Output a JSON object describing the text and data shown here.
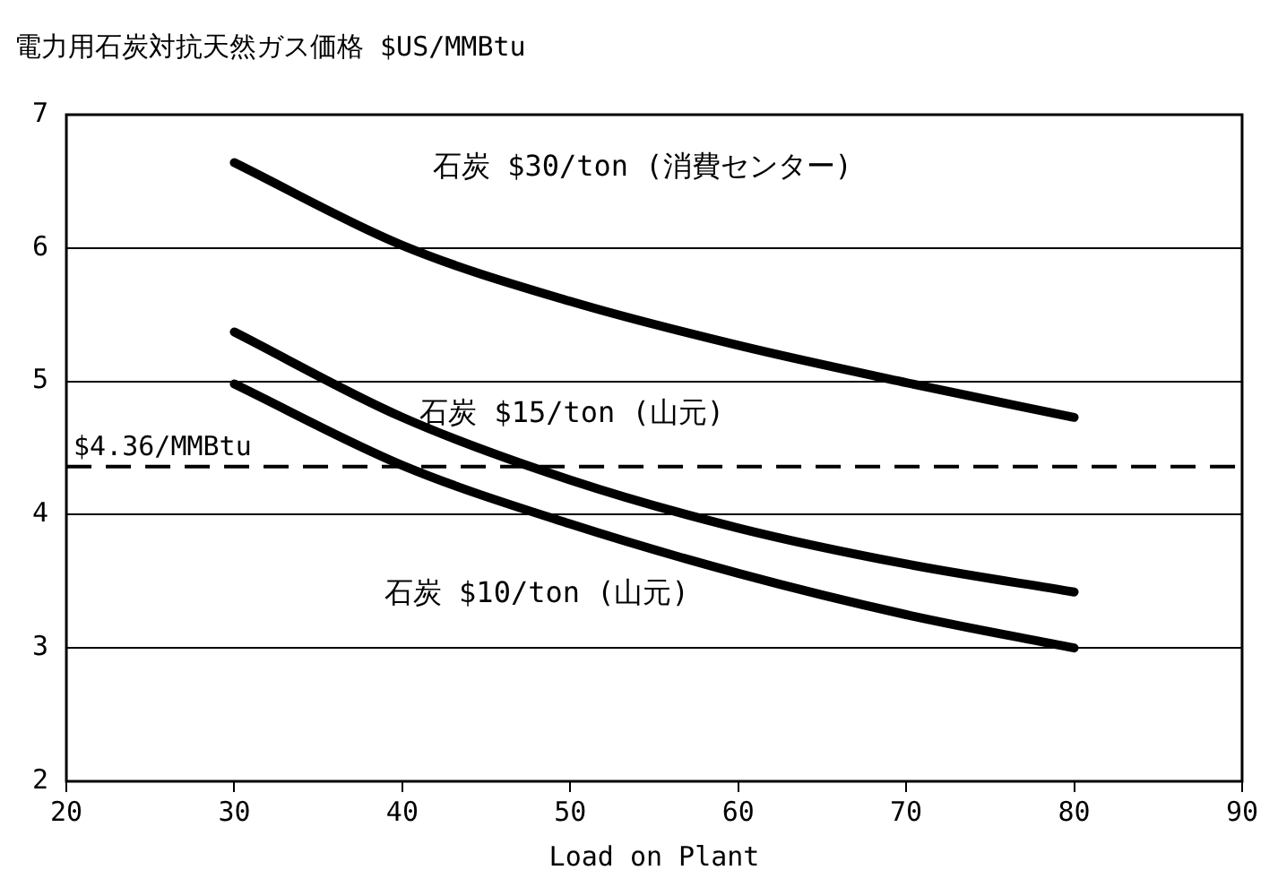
{
  "chart_data": {
    "type": "line",
    "title": "電力用石炭対抗天然ガス価格 $US/MMBtu",
    "xlabel": "Load on Plant",
    "x": [
      30,
      40,
      50,
      60,
      70,
      80
    ],
    "series": [
      {
        "name": "石炭 $30/ton (消費センター)",
        "color": "#000000",
        "values": [
          6.64,
          6.02,
          5.6,
          5.27,
          4.99,
          4.73
        ]
      },
      {
        "name": "石炭 $15/ton (山元)",
        "color": "#000000",
        "values": [
          5.37,
          4.73,
          4.26,
          3.9,
          3.63,
          3.42
        ]
      },
      {
        "name": "石炭 $10/ton (山元)",
        "color": "#000000",
        "values": [
          4.98,
          4.37,
          3.93,
          3.56,
          3.25,
          3.0
        ]
      }
    ],
    "xlim": [
      20,
      90
    ],
    "xticks": [
      20,
      30,
      40,
      50,
      60,
      70,
      80,
      90
    ],
    "ylim": [
      2,
      7
    ],
    "yticks": [
      2,
      3,
      4,
      5,
      6,
      7
    ],
    "grid": "y",
    "legend": false,
    "marker": "none",
    "line_style": "solid",
    "ref_lines": [
      {
        "axis": "y",
        "value": 4.36,
        "label": "$4.36/MMBtu",
        "color": "#000000",
        "line_style": "dashed"
      }
    ]
  }
}
